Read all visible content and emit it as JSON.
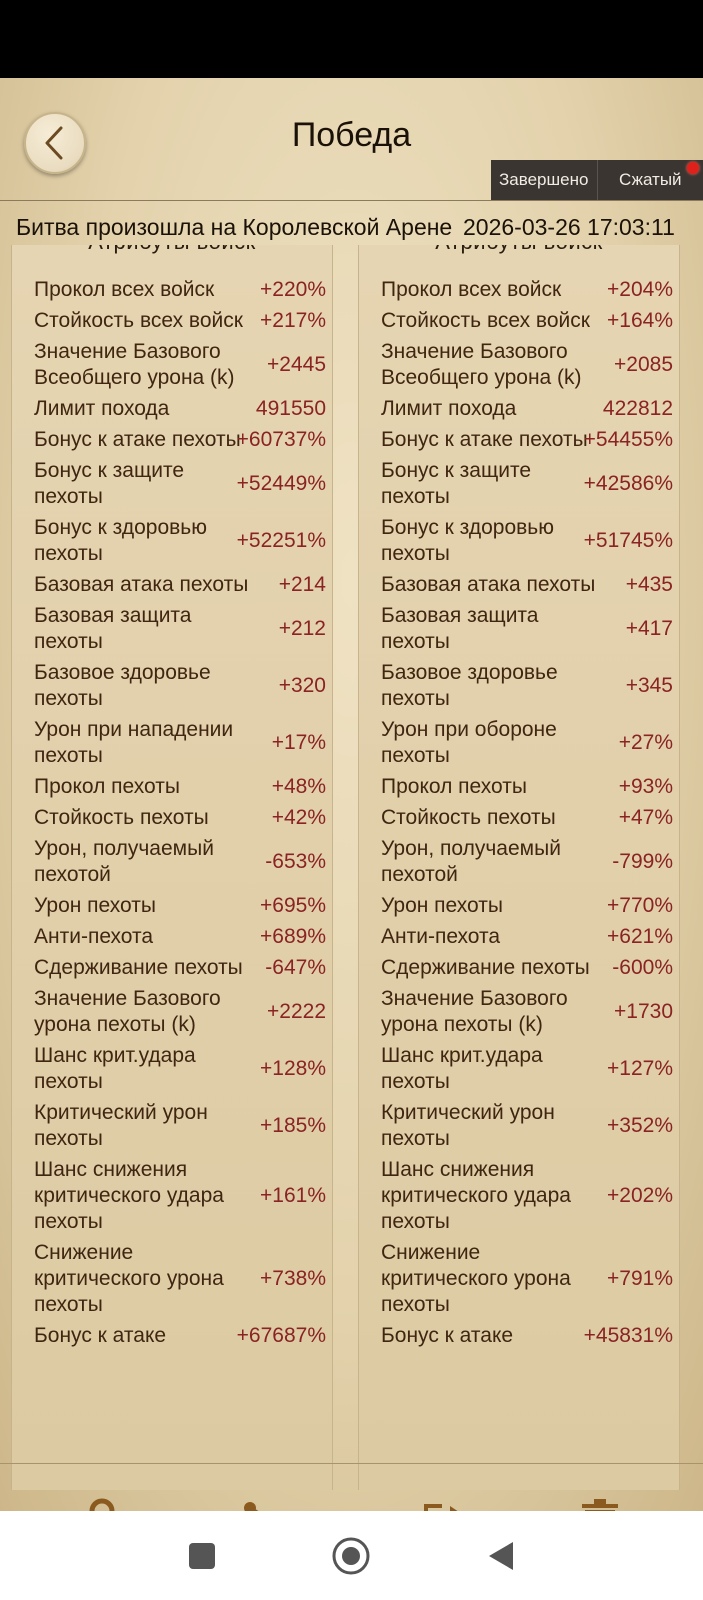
{
  "header": {
    "title": "Победа",
    "modes": [
      "Завершено",
      "Сжатый"
    ]
  },
  "battle": {
    "location": "Битва произошла на Королевской Арене",
    "datetime": "2026-03-26  17:03:11"
  },
  "section_title": "Атрибуты войск",
  "left": [
    {
      "label": "Прокол всех войск",
      "value": "+220%"
    },
    {
      "label": "Стойкость всех войск",
      "value": "+217%"
    },
    {
      "label": "Значение Базового Всеобщего урона (k)",
      "value": "+2445"
    },
    {
      "label": "Лимит похода",
      "value": "491550"
    },
    {
      "label": "Бонус к атаке пехоты",
      "value": "+60737%"
    },
    {
      "label": "Бонус к защите пехоты",
      "value": "+52449%"
    },
    {
      "label": "Бонус к здоровью пехоты",
      "value": "+52251%"
    },
    {
      "label": "Базовая атака пехоты",
      "value": "+214"
    },
    {
      "label": "Базовая защита пехоты",
      "value": "+212"
    },
    {
      "label": "Базовое здоровье пехоты",
      "value": "+320"
    },
    {
      "label": "Урон при нападении пехоты",
      "value": "+17%"
    },
    {
      "label": "Прокол пехоты",
      "value": "+48%"
    },
    {
      "label": "Стойкость пехоты",
      "value": "+42%"
    },
    {
      "label": "Урон, получаемый пехотой",
      "value": "-653%"
    },
    {
      "label": "Урон пехоты",
      "value": "+695%"
    },
    {
      "label": "Анти-пехота",
      "value": "+689%"
    },
    {
      "label": "Сдерживание пехоты",
      "value": "-647%"
    },
    {
      "label": "Значение Базового урона пехоты (k)",
      "value": "+2222"
    },
    {
      "label": "Шанс крит.удара пехоты",
      "value": "+128%"
    },
    {
      "label": "Критический урон пехоты",
      "value": "+185%"
    },
    {
      "label": "Шанс снижения критического удара пехоты",
      "value": "+161%"
    },
    {
      "label": "Снижение критического урона пехоты",
      "value": "+738%"
    },
    {
      "label": "Бонус к атаке",
      "value": "+67687%"
    }
  ],
  "right": [
    {
      "label": "Прокол всех войск",
      "value": "+204%"
    },
    {
      "label": "Стойкость всех войск",
      "value": "+164%"
    },
    {
      "label": "Значение Базового Всеобщего урона (k)",
      "value": "+2085"
    },
    {
      "label": "Лимит похода",
      "value": "422812"
    },
    {
      "label": "Бонус к атаке пехоты",
      "value": "+54455%"
    },
    {
      "label": "Бонус к защите пехоты",
      "value": "+42586%"
    },
    {
      "label": "Бонус к здоровью пехоты",
      "value": "+51745%"
    },
    {
      "label": "Базовая атака пехоты",
      "value": "+435"
    },
    {
      "label": "Базовая защита пехоты",
      "value": "+417"
    },
    {
      "label": "Базовое здоровье пехоты",
      "value": "+345"
    },
    {
      "label": "Урон при обороне пехоты",
      "value": "+27%"
    },
    {
      "label": "Прокол пехоты",
      "value": "+93%"
    },
    {
      "label": "Стойкость пехоты",
      "value": "+47%"
    },
    {
      "label": "Урон, получаемый пехотой",
      "value": "-799%"
    },
    {
      "label": "Урон пехоты",
      "value": "+770%"
    },
    {
      "label": "Анти-пехота",
      "value": "+621%"
    },
    {
      "label": "Сдерживание пехоты",
      "value": "-600%"
    },
    {
      "label": "Значение Базового урона пехоты (k)",
      "value": "+1730"
    },
    {
      "label": "Шанс крит.удара пехоты",
      "value": "+127%"
    },
    {
      "label": "Критический урон пехоты",
      "value": "+352%"
    },
    {
      "label": "Шанс снижения критического удара пехоты",
      "value": "+202%"
    },
    {
      "label": "Снижение критического урона пехоты",
      "value": "+791%"
    },
    {
      "label": "Бонус к атаке",
      "value": "+45831%"
    }
  ],
  "toolbar": {
    "icons": [
      "lock-icon",
      "share-icon",
      "export-icon",
      "trash-icon"
    ],
    "accent": "#8b5a1e"
  },
  "navbar": {
    "icons": [
      "recents-icon",
      "home-icon",
      "back-icon"
    ]
  }
}
